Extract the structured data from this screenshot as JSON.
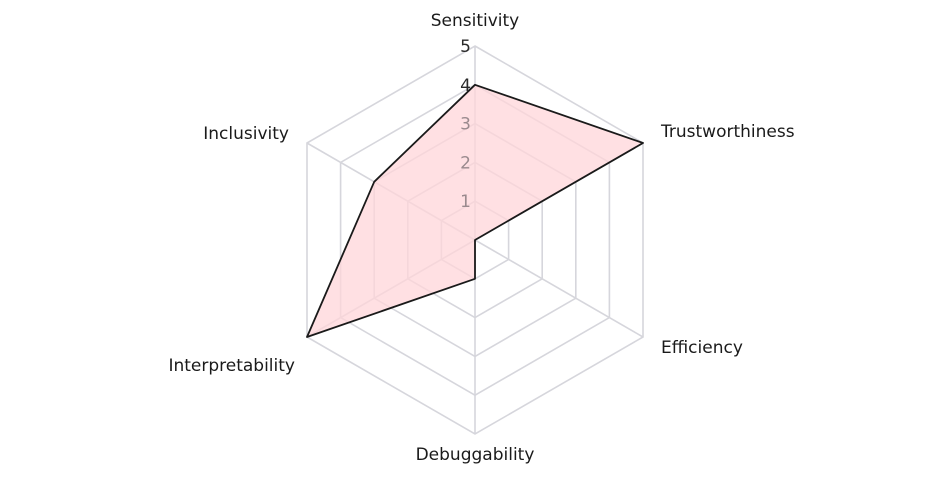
{
  "chart_data": {
    "type": "radar",
    "axes": [
      "Sensitivity",
      "Trustworthiness",
      "Efficiency",
      "Debuggability",
      "Interpretability",
      "Inclusivity"
    ],
    "series": [
      {
        "values": [
          4,
          5,
          0,
          1,
          5,
          3
        ],
        "fill": "#ffd6d9",
        "stroke": "#1a1a1a"
      }
    ],
    "rlim": [
      0,
      5
    ],
    "ticks": [
      "1",
      "2",
      "3",
      "4",
      "5"
    ],
    "grid": true,
    "grid_color": "#d6d6dc"
  }
}
